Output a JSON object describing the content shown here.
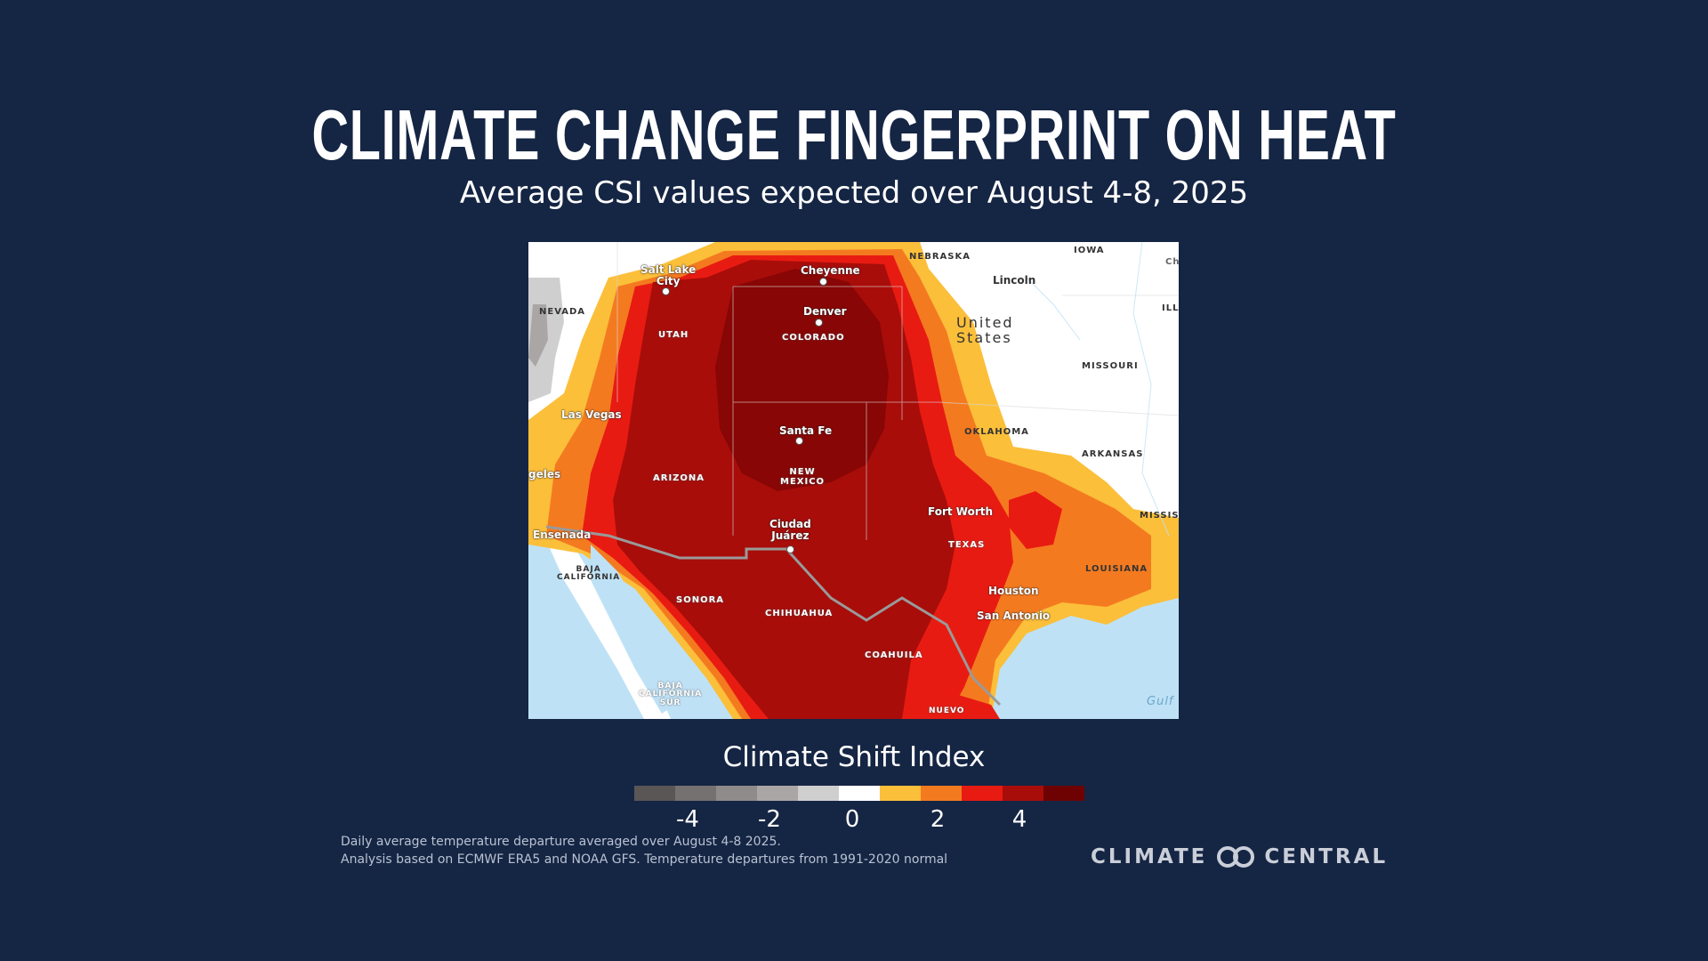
{
  "header": {
    "title": "CLIMATE CHANGE FINGERPRINT ON HEAT",
    "subtitle": "Average CSI values expected over August 4-8, 2025"
  },
  "map": {
    "cities": {
      "salt_lake_city": "Salt Lake\nCity",
      "cheyenne": "Cheyenne",
      "lincoln": "Lincoln",
      "denver": "Denver",
      "las_vegas": "Las Vegas",
      "santa_fe": "Santa Fe",
      "los_angeles": "geles",
      "fort_worth": "Fort Worth",
      "ensenada": "Ensenada",
      "ciudad_juarez": "Ciudad\nJuárez",
      "houston": "Houston",
      "san_antonio": "San Antonio"
    },
    "regions": {
      "nebraska": "NEBRASKA",
      "iowa": "IOWA",
      "nevada": "NEVADA",
      "utah": "UTAH",
      "colorado": "COLORADO",
      "missouri": "MISSOURI",
      "oklahoma": "OKLAHOMA",
      "arkansas": "ARKANSAS",
      "arizona": "ARIZONA",
      "new_mexico": "NEW\nMEXICO",
      "texas": "TEXAS",
      "louisiana": "LOUISIANA",
      "mississippi": "MISSIS",
      "illinois": "ILL",
      "chicago": "Ch",
      "baja_california": "BAJA\nCALIFORNIA",
      "sonora": "SONORA",
      "chihuahua": "CHIHUAHUA",
      "coahuila": "COAHUILA",
      "baja_california_sur": "BAJA\nCALIFORNIA\nSUR",
      "nuevo_leon": "NUEVO",
      "gulf": "Gulf"
    },
    "country": "United\nStates"
  },
  "legend": {
    "title": "Climate Shift Index",
    "ticks": [
      "-4",
      "-2",
      "0",
      "2",
      "4"
    ],
    "colors": [
      "#5a5656",
      "#757171",
      "#8f8b8b",
      "#aaa6a6",
      "#cfcfcf",
      "#ffffff",
      "#fbbf3a",
      "#f47a20",
      "#e81b12",
      "#a80d0a",
      "#6e0202"
    ]
  },
  "footer": {
    "line1": "Daily average temperature departure averaged over August 4-8 2025.",
    "line2": "Analysis based on ECMWF ERA5 and NOAA GFS. Temperature departures from 1991-2020 normal"
  },
  "logo": {
    "left": "CLIMATE",
    "right": "CENTRAL"
  }
}
